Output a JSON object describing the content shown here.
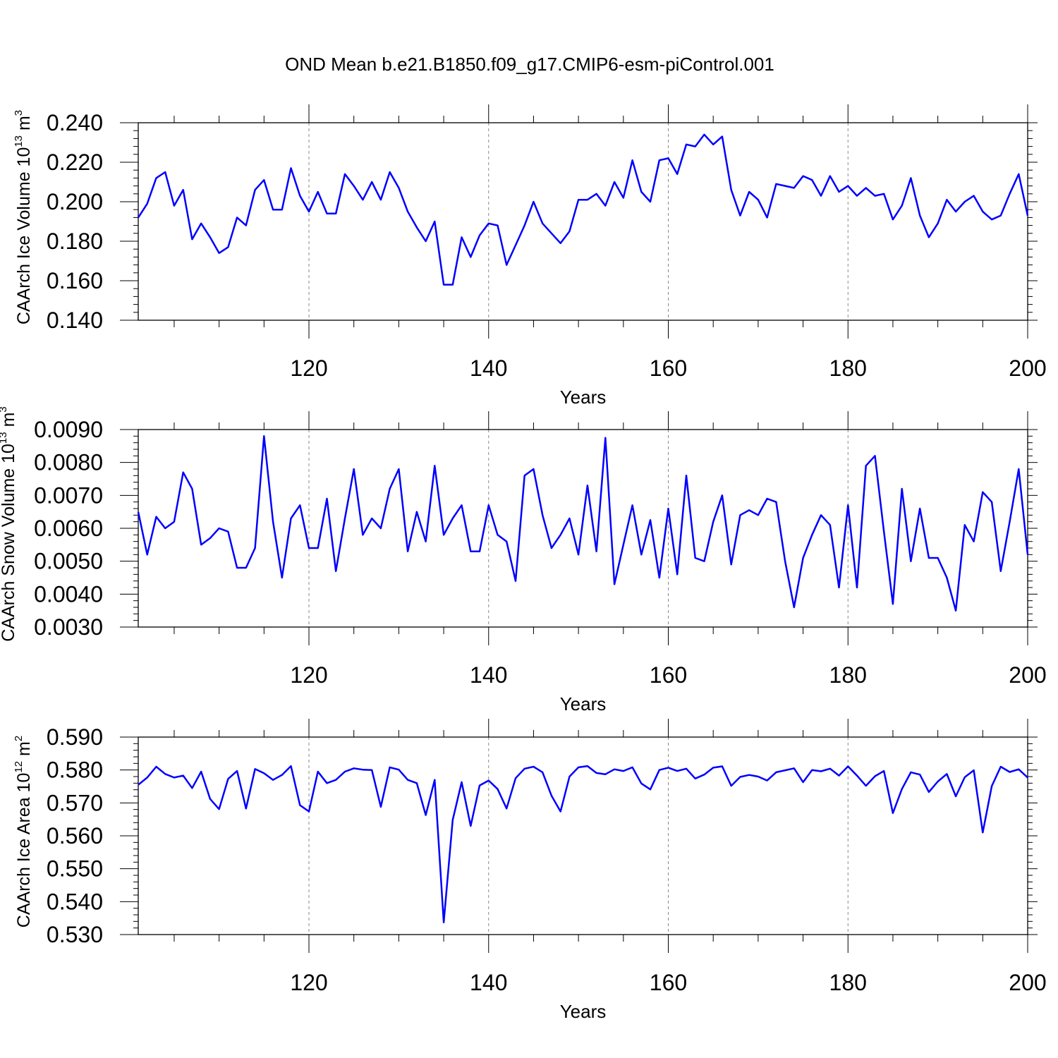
{
  "title": "OND Mean b.e21.B1850.f09_g17.CMIP6-esm-piControl.001",
  "colors": {
    "line": "#0000ff",
    "axes": "#000000",
    "grid": "#888888"
  },
  "chart_data": [
    {
      "type": "line",
      "xlabel": "Years",
      "ylabel": {
        "name": "CAArch Ice Volume",
        "unit_base": "10",
        "unit_exp": "13",
        "unit": "m",
        "unit_unit_exp": "3"
      },
      "xlim": [
        101,
        200
      ],
      "ylim": [
        0.14,
        0.24
      ],
      "yticks": [
        0.14,
        0.16,
        0.18,
        0.2,
        0.22,
        0.24
      ],
      "ytick_labels": [
        "0.140",
        "0.160",
        "0.180",
        "0.200",
        "0.220",
        "0.240"
      ],
      "xticks": [
        120,
        140,
        160,
        180,
        200
      ],
      "xtick_labels": [
        "120",
        "140",
        "160",
        "180",
        "200"
      ],
      "grid_x": [
        120,
        140,
        160,
        180
      ],
      "series": [
        {
          "name": "CAArch Ice Volume",
          "x_start": 101,
          "values": [
            0.192,
            0.199,
            0.212,
            0.215,
            0.198,
            0.206,
            0.181,
            0.189,
            0.182,
            0.174,
            0.177,
            0.192,
            0.188,
            0.206,
            0.211,
            0.196,
            0.196,
            0.217,
            0.203,
            0.195,
            0.205,
            0.194,
            0.194,
            0.214,
            0.208,
            0.201,
            0.21,
            0.201,
            0.215,
            0.207,
            0.195,
            0.187,
            0.18,
            0.19,
            0.158,
            0.158,
            0.182,
            0.172,
            0.183,
            0.189,
            0.188,
            0.168,
            0.178,
            0.188,
            0.2,
            0.189,
            0.184,
            0.179,
            0.185,
            0.201,
            0.201,
            0.204,
            0.198,
            0.21,
            0.202,
            0.221,
            0.205,
            0.2,
            0.221,
            0.222,
            0.214,
            0.229,
            0.228,
            0.234,
            0.229,
            0.233,
            0.206,
            0.193,
            0.205,
            0.201,
            0.192,
            0.209,
            0.208,
            0.207,
            0.213,
            0.211,
            0.203,
            0.213,
            0.205,
            0.208,
            0.203,
            0.207,
            0.203,
            0.204,
            0.191,
            0.198,
            0.212,
            0.193,
            0.182,
            0.189,
            0.201,
            0.195,
            0.2,
            0.203,
            0.195,
            0.191,
            0.193,
            0.204,
            0.214,
            0.193
          ]
        }
      ]
    },
    {
      "type": "line",
      "xlabel": "Years",
      "ylabel": {
        "name": "CAArch Snow Volume",
        "unit_base": "10",
        "unit_exp": "13",
        "unit": "m",
        "unit_unit_exp": "3"
      },
      "xlim": [
        101,
        200
      ],
      "ylim": [
        0.003,
        0.009
      ],
      "yticks": [
        0.003,
        0.004,
        0.005,
        0.006,
        0.007,
        0.008,
        0.009
      ],
      "ytick_labels": [
        "0.0030",
        "0.0040",
        "0.0050",
        "0.0060",
        "0.0070",
        "0.0080",
        "0.0090"
      ],
      "xticks": [
        120,
        140,
        160,
        180,
        200
      ],
      "xtick_labels": [
        "120",
        "140",
        "160",
        "180",
        "200"
      ],
      "grid_x": [
        120,
        140,
        160,
        180
      ],
      "series": [
        {
          "name": "CAArch Snow Volume",
          "x_start": 101,
          "values": [
            0.0065,
            0.0052,
            0.00635,
            0.006,
            0.0062,
            0.0077,
            0.0072,
            0.0055,
            0.0057,
            0.006,
            0.0059,
            0.0048,
            0.0048,
            0.0054,
            0.0088,
            0.0062,
            0.0045,
            0.0063,
            0.0067,
            0.0054,
            0.0054,
            0.0069,
            0.0047,
            0.0063,
            0.0078,
            0.0058,
            0.0063,
            0.006,
            0.0072,
            0.0078,
            0.0053,
            0.0065,
            0.0056,
            0.0079,
            0.0058,
            0.0063,
            0.0067,
            0.0053,
            0.0053,
            0.0067,
            0.0058,
            0.0056,
            0.0044,
            0.0076,
            0.0078,
            0.0064,
            0.0054,
            0.0058,
            0.0063,
            0.0052,
            0.0073,
            0.0053,
            0.00875,
            0.0043,
            0.0055,
            0.0067,
            0.0052,
            0.00625,
            0.0045,
            0.0066,
            0.0046,
            0.0076,
            0.0051,
            0.005,
            0.0062,
            0.007,
            0.0049,
            0.0064,
            0.00655,
            0.0064,
            0.0069,
            0.0068,
            0.005,
            0.0036,
            0.0051,
            0.0058,
            0.0064,
            0.0061,
            0.0042,
            0.0067,
            0.0042,
            0.0079,
            0.0082,
            0.0059,
            0.0037,
            0.0072,
            0.005,
            0.0066,
            0.0051,
            0.0051,
            0.0045,
            0.0035,
            0.0061,
            0.0056,
            0.0071,
            0.0068,
            0.0047,
            0.0062,
            0.0078,
            0.0052
          ]
        }
      ]
    },
    {
      "type": "line",
      "xlabel": "Years",
      "ylabel": {
        "name": "CAArch Ice Area",
        "unit_base": "10",
        "unit_exp": "12",
        "unit": "m",
        "unit_unit_exp": "2"
      },
      "xlim": [
        101,
        200
      ],
      "ylim": [
        0.53,
        0.59
      ],
      "yticks": [
        0.53,
        0.54,
        0.55,
        0.56,
        0.57,
        0.58,
        0.59
      ],
      "ytick_labels": [
        "0.530",
        "0.540",
        "0.550",
        "0.560",
        "0.570",
        "0.580",
        "0.590"
      ],
      "xticks": [
        120,
        140,
        160,
        180,
        200
      ],
      "xtick_labels": [
        "120",
        "140",
        "160",
        "180",
        "200"
      ],
      "grid_x": [
        120,
        140,
        160,
        180
      ],
      "series": [
        {
          "name": "CAArch Ice Area",
          "x_start": 101,
          "values": [
            0.5755,
            0.5777,
            0.581,
            0.5788,
            0.5777,
            0.5783,
            0.5745,
            0.5795,
            0.5712,
            0.5681,
            0.5773,
            0.5797,
            0.5683,
            0.5803,
            0.579,
            0.577,
            0.5785,
            0.5812,
            0.5693,
            0.5674,
            0.5795,
            0.576,
            0.577,
            0.5795,
            0.5805,
            0.5801,
            0.58,
            0.5688,
            0.5808,
            0.5801,
            0.577,
            0.576,
            0.5663,
            0.577,
            0.5337,
            0.5648,
            0.5763,
            0.563,
            0.5753,
            0.5768,
            0.5742,
            0.5683,
            0.5775,
            0.5804,
            0.581,
            0.5793,
            0.5722,
            0.5674,
            0.578,
            0.5808,
            0.5812,
            0.5791,
            0.5787,
            0.5802,
            0.5797,
            0.5808,
            0.5759,
            0.5741,
            0.58,
            0.5807,
            0.5797,
            0.5804,
            0.5774,
            0.5786,
            0.5807,
            0.5811,
            0.5752,
            0.5779,
            0.5785,
            0.578,
            0.5768,
            0.5793,
            0.5799,
            0.5805,
            0.5763,
            0.58,
            0.5796,
            0.5804,
            0.5783,
            0.5811,
            0.5783,
            0.5752,
            0.5781,
            0.5797,
            0.5669,
            0.5742,
            0.5793,
            0.5786,
            0.5733,
            0.5765,
            0.5788,
            0.572,
            0.5778,
            0.5799,
            0.561,
            0.5751,
            0.581,
            0.5794,
            0.5802,
            0.5777
          ]
        }
      ]
    }
  ]
}
